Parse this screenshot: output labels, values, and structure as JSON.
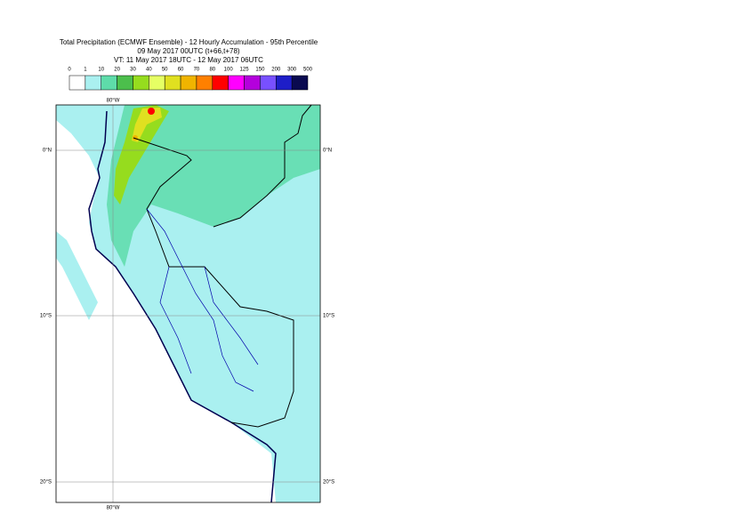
{
  "header": {
    "title": [
      "Total Precipitation (ECMWF Ensemble) - 12 Hourly Accumulation - 95th Percentile",
      "09 May 2017 00UTC (t+66,t+78)",
      "VT: 11 May 2017 18UTC - 12 May 2017 06UTC"
    ]
  },
  "legend": {
    "labels": [
      "0",
      "1",
      "10",
      "20",
      "30",
      "40",
      "50",
      "60",
      "70",
      "80",
      "100",
      "125",
      "150",
      "200",
      "300",
      "500"
    ],
    "colors": [
      "#ffffff",
      "#aaf0f0",
      "#5edcaa",
      "#4cbf4c",
      "#96dc1e",
      "#e6ff64",
      "#e0e020",
      "#f0b400",
      "#ff8000",
      "#ff0000",
      "#ff00ff",
      "#b400dc",
      "#7850ff",
      "#1e1ec8",
      "#0a0a50"
    ]
  },
  "map": {
    "lat_labels": [
      "0°N",
      "10°S",
      "20°S"
    ],
    "lon_labels": [
      "80°W"
    ]
  }
}
